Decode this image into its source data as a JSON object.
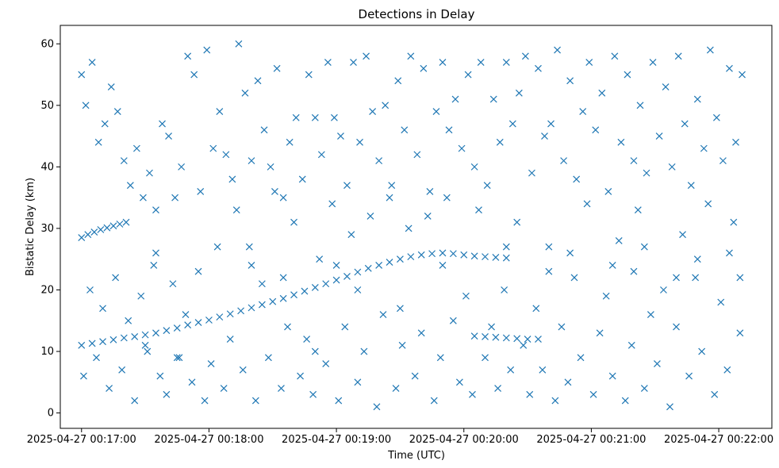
{
  "chart_data": {
    "type": "scatter",
    "title": "Detections in Delay",
    "xlabel": "Time (UTC)",
    "ylabel": "Bistatic Delay (km)",
    "x_unit": "time (UTC)",
    "xlim": [
      "2025-04-27 00:16:50",
      "2025-04-27 00:22:25"
    ],
    "ylim": [
      -2.5,
      63
    ],
    "x_tick_labels": [
      "2025-04-27 00:17:00",
      "2025-04-27 00:18:00",
      "2025-04-27 00:19:00",
      "2025-04-27 00:20:00",
      "2025-04-27 00:21:00",
      "2025-04-27 00:22:00"
    ],
    "y_tick_labels": [
      "0",
      "10",
      "20",
      "30",
      "40",
      "50",
      "60"
    ],
    "y_ticks": [
      0,
      10,
      20,
      30,
      40,
      50,
      60
    ],
    "marker": "x",
    "color": "#1f77b4",
    "grid": false,
    "legend": "none",
    "series": [
      {
        "track": "main",
        "points": [
          [
            "00:17:00",
            11.0
          ],
          [
            "00:17:05",
            11.3
          ],
          [
            "00:17:10",
            11.6
          ],
          [
            "00:17:15",
            11.9
          ],
          [
            "00:17:20",
            12.2
          ],
          [
            "00:17:25",
            12.4
          ],
          [
            "00:17:30",
            12.7
          ],
          [
            "00:17:35",
            13.0
          ],
          [
            "00:17:40",
            13.4
          ],
          [
            "00:17:45",
            13.8
          ],
          [
            "00:17:50",
            14.3
          ],
          [
            "00:17:55",
            14.7
          ],
          [
            "00:18:00",
            15.1
          ],
          [
            "00:18:05",
            15.6
          ],
          [
            "00:18:10",
            16.1
          ],
          [
            "00:18:15",
            16.6
          ],
          [
            "00:18:20",
            17.1
          ],
          [
            "00:18:25",
            17.6
          ],
          [
            "00:18:30",
            18.1
          ],
          [
            "00:18:35",
            18.6
          ],
          [
            "00:18:40",
            19.2
          ],
          [
            "00:18:45",
            19.8
          ],
          [
            "00:18:50",
            20.4
          ],
          [
            "00:18:55",
            21.0
          ],
          [
            "00:19:00",
            21.6
          ],
          [
            "00:19:05",
            22.2
          ],
          [
            "00:19:10",
            22.9
          ],
          [
            "00:19:15",
            23.5
          ],
          [
            "00:19:20",
            24.0
          ],
          [
            "00:19:25",
            24.5
          ],
          [
            "00:19:30",
            25.0
          ],
          [
            "00:19:35",
            25.4
          ],
          [
            "00:19:40",
            25.7
          ],
          [
            "00:19:45",
            25.9
          ],
          [
            "00:19:50",
            26.0
          ],
          [
            "00:19:55",
            25.9
          ],
          [
            "00:20:00",
            25.7
          ],
          [
            "00:20:05",
            25.5
          ],
          [
            "00:20:10",
            25.4
          ],
          [
            "00:20:15",
            25.3
          ],
          [
            "00:20:20",
            25.2
          ]
        ]
      },
      {
        "track": "upper-left",
        "points": [
          [
            "00:17:00",
            28.5
          ],
          [
            "00:17:03",
            29.0
          ],
          [
            "00:17:06",
            29.4
          ],
          [
            "00:17:09",
            29.8
          ],
          [
            "00:17:12",
            30.1
          ],
          [
            "00:17:15",
            30.4
          ],
          [
            "00:17:18",
            30.7
          ],
          [
            "00:17:21",
            31.0
          ]
        ]
      },
      {
        "track": "lower-right",
        "points": [
          [
            "00:20:05",
            12.5
          ],
          [
            "00:20:10",
            12.4
          ],
          [
            "00:20:15",
            12.3
          ],
          [
            "00:20:20",
            12.2
          ],
          [
            "00:20:25",
            12.1
          ],
          [
            "00:20:30",
            12.0
          ],
          [
            "00:20:35",
            12.0
          ]
        ]
      },
      {
        "track": "scatter",
        "points": [
          [
            "00:17:00",
            55
          ],
          [
            "00:17:02",
            50
          ],
          [
            "00:17:05",
            57
          ],
          [
            "00:17:08",
            44
          ],
          [
            "00:17:11",
            47
          ],
          [
            "00:17:14",
            53
          ],
          [
            "00:17:17",
            49
          ],
          [
            "00:17:20",
            41
          ],
          [
            "00:17:23",
            37
          ],
          [
            "00:17:26",
            43
          ],
          [
            "00:17:29",
            35
          ],
          [
            "00:17:32",
            39
          ],
          [
            "00:17:35",
            33
          ],
          [
            "00:17:38",
            47
          ],
          [
            "00:17:41",
            45
          ],
          [
            "00:17:44",
            35
          ],
          [
            "00:17:47",
            40
          ],
          [
            "00:17:50",
            58
          ],
          [
            "00:17:53",
            55
          ],
          [
            "00:17:56",
            36
          ],
          [
            "00:17:59",
            59
          ],
          [
            "00:18:02",
            43
          ],
          [
            "00:18:05",
            49
          ],
          [
            "00:18:08",
            42
          ],
          [
            "00:18:11",
            38
          ],
          [
            "00:18:14",
            60
          ],
          [
            "00:18:17",
            52
          ],
          [
            "00:18:20",
            41
          ],
          [
            "00:18:23",
            54
          ],
          [
            "00:18:26",
            46
          ],
          [
            "00:18:29",
            40
          ],
          [
            "00:18:32",
            56
          ],
          [
            "00:18:35",
            35
          ],
          [
            "00:18:38",
            44
          ],
          [
            "00:18:41",
            48
          ],
          [
            "00:18:44",
            38
          ],
          [
            "00:18:47",
            55
          ],
          [
            "00:18:50",
            48
          ],
          [
            "00:18:53",
            42
          ],
          [
            "00:18:56",
            57
          ],
          [
            "00:18:59",
            48
          ],
          [
            "00:19:02",
            45
          ],
          [
            "00:19:05",
            37
          ],
          [
            "00:19:08",
            57
          ],
          [
            "00:19:11",
            44
          ],
          [
            "00:19:14",
            58
          ],
          [
            "00:19:17",
            49
          ],
          [
            "00:19:20",
            41
          ],
          [
            "00:19:23",
            50
          ],
          [
            "00:19:26",
            37
          ],
          [
            "00:19:29",
            54
          ],
          [
            "00:19:32",
            46
          ],
          [
            "00:19:35",
            58
          ],
          [
            "00:19:38",
            42
          ],
          [
            "00:19:41",
            56
          ],
          [
            "00:19:44",
            36
          ],
          [
            "00:19:47",
            49
          ],
          [
            "00:19:50",
            57
          ],
          [
            "00:19:53",
            46
          ],
          [
            "00:19:56",
            51
          ],
          [
            "00:19:59",
            43
          ],
          [
            "00:20:02",
            55
          ],
          [
            "00:20:05",
            40
          ],
          [
            "00:20:08",
            57
          ],
          [
            "00:20:11",
            37
          ],
          [
            "00:20:14",
            51
          ],
          [
            "00:20:17",
            44
          ],
          [
            "00:20:20",
            57
          ],
          [
            "00:20:23",
            47
          ],
          [
            "00:20:26",
            52
          ],
          [
            "00:20:29",
            58
          ],
          [
            "00:20:32",
            39
          ],
          [
            "00:20:35",
            56
          ],
          [
            "00:20:38",
            45
          ],
          [
            "00:20:41",
            47
          ],
          [
            "00:20:44",
            59
          ],
          [
            "00:20:47",
            41
          ],
          [
            "00:20:50",
            54
          ],
          [
            "00:20:53",
            38
          ],
          [
            "00:20:56",
            49
          ],
          [
            "00:20:59",
            57
          ],
          [
            "00:21:02",
            46
          ],
          [
            "00:21:05",
            52
          ],
          [
            "00:21:08",
            36
          ],
          [
            "00:21:11",
            58
          ],
          [
            "00:21:14",
            44
          ],
          [
            "00:21:17",
            55
          ],
          [
            "00:21:20",
            41
          ],
          [
            "00:21:23",
            50
          ],
          [
            "00:21:26",
            39
          ],
          [
            "00:21:29",
            57
          ],
          [
            "00:21:32",
            45
          ],
          [
            "00:21:35",
            53
          ],
          [
            "00:21:38",
            40
          ],
          [
            "00:21:41",
            58
          ],
          [
            "00:21:44",
            47
          ],
          [
            "00:21:47",
            37
          ],
          [
            "00:21:50",
            51
          ],
          [
            "00:21:53",
            43
          ],
          [
            "00:21:56",
            59
          ],
          [
            "00:21:59",
            48
          ],
          [
            "00:22:02",
            41
          ],
          [
            "00:22:05",
            56
          ],
          [
            "00:22:08",
            44
          ],
          [
            "00:22:11",
            55
          ],
          [
            "00:17:01",
            6
          ],
          [
            "00:17:04",
            20
          ],
          [
            "00:17:07",
            9
          ],
          [
            "00:17:10",
            17
          ],
          [
            "00:17:13",
            4
          ],
          [
            "00:17:16",
            22
          ],
          [
            "00:17:19",
            7
          ],
          [
            "00:17:22",
            15
          ],
          [
            "00:17:25",
            2
          ],
          [
            "00:17:28",
            19
          ],
          [
            "00:17:31",
            10
          ],
          [
            "00:17:34",
            24
          ],
          [
            "00:17:37",
            6
          ],
          [
            "00:17:40",
            3
          ],
          [
            "00:17:43",
            21
          ],
          [
            "00:17:46",
            9
          ],
          [
            "00:17:49",
            16
          ],
          [
            "00:17:52",
            5
          ],
          [
            "00:17:55",
            23
          ],
          [
            "00:17:58",
            2
          ],
          [
            "00:18:01",
            8
          ],
          [
            "00:18:04",
            27
          ],
          [
            "00:18:07",
            4
          ],
          [
            "00:18:10",
            12
          ],
          [
            "00:18:13",
            33
          ],
          [
            "00:18:16",
            7
          ],
          [
            "00:18:19",
            27
          ],
          [
            "00:18:22",
            2
          ],
          [
            "00:18:25",
            21
          ],
          [
            "00:18:28",
            9
          ],
          [
            "00:18:31",
            36
          ],
          [
            "00:18:34",
            4
          ],
          [
            "00:18:37",
            14
          ],
          [
            "00:18:40",
            31
          ],
          [
            "00:18:43",
            6
          ],
          [
            "00:18:46",
            12
          ],
          [
            "00:18:49",
            3
          ],
          [
            "00:18:52",
            25
          ],
          [
            "00:18:55",
            8
          ],
          [
            "00:18:58",
            34
          ],
          [
            "00:19:01",
            2
          ],
          [
            "00:19:04",
            14
          ],
          [
            "00:19:07",
            29
          ],
          [
            "00:19:10",
            5
          ],
          [
            "00:19:13",
            10
          ],
          [
            "00:19:16",
            32
          ],
          [
            "00:19:19",
            1
          ],
          [
            "00:19:22",
            16
          ],
          [
            "00:19:25",
            35
          ],
          [
            "00:19:28",
            4
          ],
          [
            "00:19:31",
            11
          ],
          [
            "00:19:34",
            30
          ],
          [
            "00:19:37",
            6
          ],
          [
            "00:19:40",
            13
          ],
          [
            "00:19:43",
            32
          ],
          [
            "00:19:46",
            2
          ],
          [
            "00:19:49",
            9
          ],
          [
            "00:19:52",
            35
          ],
          [
            "00:19:55",
            15
          ],
          [
            "00:19:58",
            5
          ],
          [
            "00:20:01",
            19
          ],
          [
            "00:20:04",
            3
          ],
          [
            "00:20:07",
            33
          ],
          [
            "00:20:10",
            9
          ],
          [
            "00:20:13",
            14
          ],
          [
            "00:20:16",
            4
          ],
          [
            "00:20:19",
            20
          ],
          [
            "00:20:22",
            7
          ],
          [
            "00:20:25",
            31
          ],
          [
            "00:20:28",
            11
          ],
          [
            "00:20:31",
            3
          ],
          [
            "00:20:34",
            17
          ],
          [
            "00:20:37",
            7
          ],
          [
            "00:20:40",
            27
          ],
          [
            "00:20:43",
            2
          ],
          [
            "00:20:46",
            14
          ],
          [
            "00:20:49",
            5
          ],
          [
            "00:20:52",
            22
          ],
          [
            "00:20:55",
            9
          ],
          [
            "00:20:58",
            34
          ],
          [
            "00:21:01",
            3
          ],
          [
            "00:21:04",
            13
          ],
          [
            "00:21:07",
            19
          ],
          [
            "00:21:10",
            6
          ],
          [
            "00:21:13",
            28
          ],
          [
            "00:21:16",
            2
          ],
          [
            "00:21:19",
            11
          ],
          [
            "00:21:22",
            33
          ],
          [
            "00:21:25",
            4
          ],
          [
            "00:21:28",
            16
          ],
          [
            "00:21:31",
            8
          ],
          [
            "00:21:34",
            20
          ],
          [
            "00:21:37",
            1
          ],
          [
            "00:21:40",
            14
          ],
          [
            "00:21:43",
            29
          ],
          [
            "00:21:46",
            6
          ],
          [
            "00:21:49",
            22
          ],
          [
            "00:21:52",
            10
          ],
          [
            "00:21:55",
            34
          ],
          [
            "00:21:58",
            3
          ],
          [
            "00:22:01",
            18
          ],
          [
            "00:22:04",
            7
          ],
          [
            "00:22:07",
            31
          ],
          [
            "00:22:10",
            13
          ],
          [
            "00:17:30",
            11
          ],
          [
            "00:17:45",
            9
          ],
          [
            "00:18:20",
            24
          ],
          [
            "00:18:50",
            10
          ],
          [
            "00:19:10",
            20
          ],
          [
            "00:19:30",
            17
          ],
          [
            "00:19:50",
            24
          ],
          [
            "00:20:20",
            27
          ],
          [
            "00:20:40",
            23
          ],
          [
            "00:21:10",
            24
          ],
          [
            "00:21:20",
            23
          ],
          [
            "00:21:40",
            22
          ],
          [
            "00:21:50",
            25
          ],
          [
            "00:22:05",
            26
          ],
          [
            "00:22:10",
            22
          ],
          [
            "00:18:35",
            22
          ],
          [
            "00:17:35",
            26
          ],
          [
            "00:19:00",
            24
          ],
          [
            "00:20:50",
            26
          ],
          [
            "00:21:25",
            27
          ]
        ]
      }
    ]
  }
}
